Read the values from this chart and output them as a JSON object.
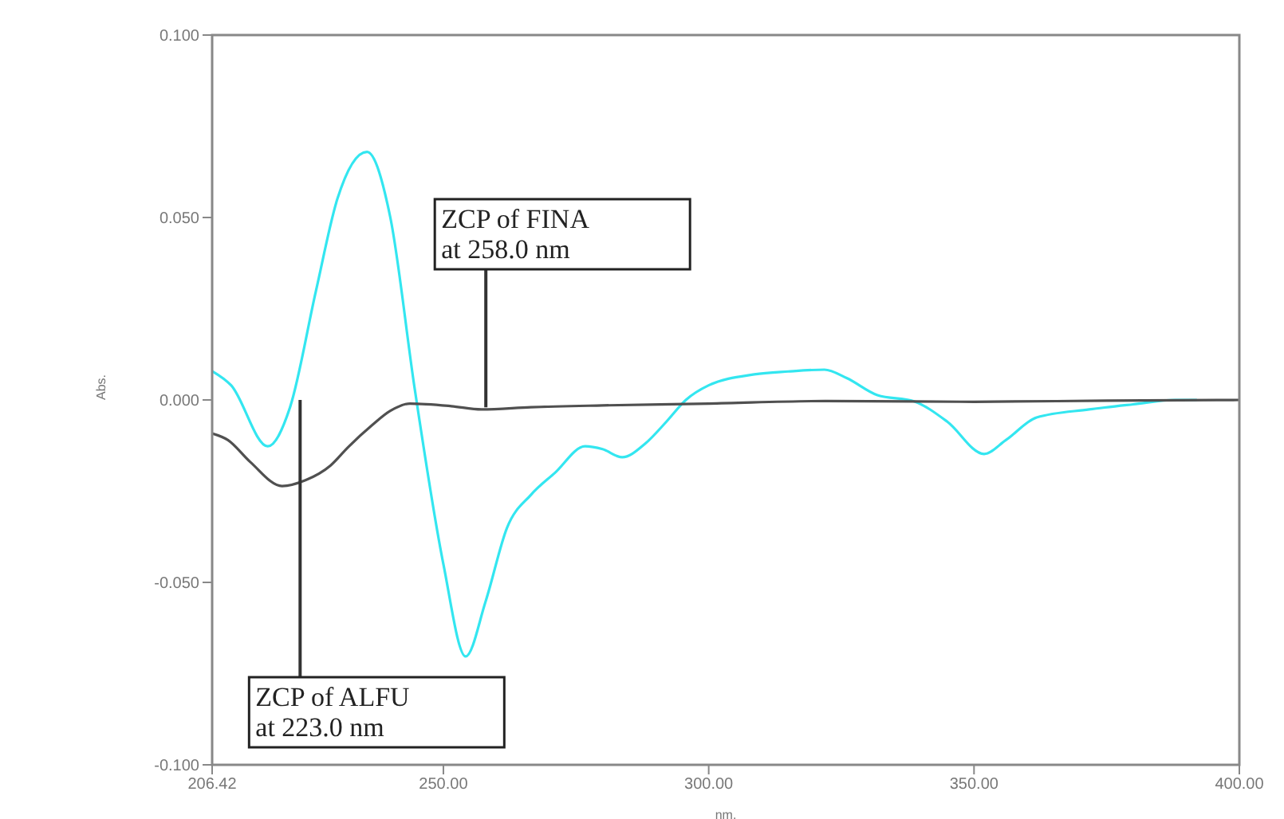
{
  "chart_data": {
    "type": "line",
    "xlabel": "nm.",
    "ylabel": "Abs.",
    "xlim": [
      206.42,
      400
    ],
    "ylim": [
      -0.1,
      0.1
    ],
    "xticks": [
      {
        "value": 206.42,
        "label": "206.42"
      },
      {
        "value": 250,
        "label": "250.00"
      },
      {
        "value": 300,
        "label": "300.00"
      },
      {
        "value": 350,
        "label": "350.00"
      },
      {
        "value": 400,
        "label": "400.00"
      }
    ],
    "yticks": [
      {
        "value": -0.1,
        "label": "-0.100"
      },
      {
        "value": -0.05,
        "label": "-0.050"
      },
      {
        "value": 0,
        "label": "0.000"
      },
      {
        "value": 0.05,
        "label": "0.050"
      },
      {
        "value": 0.1,
        "label": "0.100"
      }
    ],
    "marker": "none",
    "line_style": "solid",
    "series": [
      {
        "color": "#33e6f0",
        "x": [
          206.42,
          210,
          216.9,
          221.1,
          226,
          230,
          235.6,
          240,
          244.6,
          250,
          254.2,
          258,
          262,
          266.5,
          271,
          276.7,
          280,
          283.7,
          288,
          292,
          295.7,
          300,
          308.6,
          315,
          321.8,
          326,
          331.8,
          338.7,
          345,
          351.9,
          356,
          361.8,
          371.7,
          380,
          387.9,
          392
        ],
        "values": [
          0.0079,
          0.004,
          -0.0127,
          -0.002,
          0.03,
          0.055,
          0.068,
          0.05,
          0.003,
          -0.045,
          -0.0703,
          -0.055,
          -0.035,
          -0.026,
          -0.02,
          -0.0127,
          -0.0135,
          -0.0157,
          -0.012,
          -0.006,
          0,
          0.004,
          0.007,
          0.0078,
          0.0083,
          0.006,
          0.0013,
          -0.0004,
          -0.006,
          -0.0148,
          -0.011,
          -0.0048,
          -0.0026,
          -0.0012,
          0,
          0
        ]
      },
      {
        "color": "#505050",
        "x": [
          206.42,
          209.4,
          213.6,
          219.6,
          224,
          228.7,
          232,
          236.5,
          240,
          243.7,
          251.5,
          257.2,
          266.5,
          280,
          300,
          322,
          350,
          375,
          400
        ],
        "values": [
          -0.0092,
          -0.011,
          -0.017,
          -0.0236,
          -0.022,
          -0.018,
          -0.013,
          -0.007,
          -0.003,
          -0.001,
          -0.0017,
          -0.0026,
          -0.002,
          -0.0015,
          -0.001,
          -0.0003,
          -0.0005,
          -0.0002,
          0
        ]
      }
    ],
    "annotations": [
      {
        "text": "ZCP of FINA\nat 258.0 nm",
        "x": 258,
        "y": -0.002
      },
      {
        "text": "ZCP of ALFU\nat 223.0 nm",
        "x": 223,
        "y": 0
      }
    ]
  }
}
